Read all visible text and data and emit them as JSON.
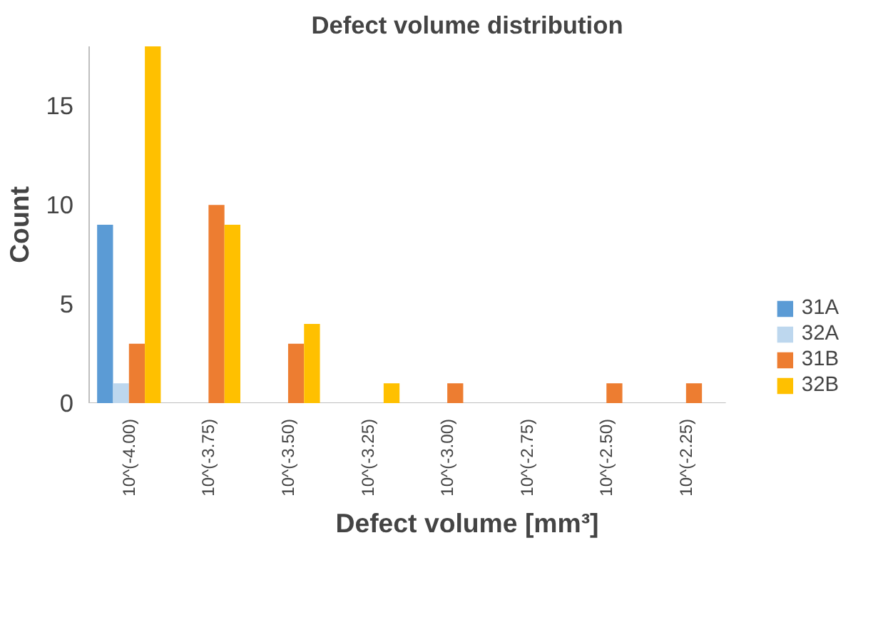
{
  "chart_data": {
    "type": "bar",
    "title": "Defect volume distribution",
    "xlabel": "Defect volume [mm³]",
    "ylabel": "Count",
    "categories": [
      "10^(-4.00)",
      "10^(-3.75)",
      "10^(-3.50)",
      "10^(-3.25)",
      "10^(-3.00)",
      "10^(-2.75)",
      "10^(-2.50)",
      "10^(-2.25)"
    ],
    "series": [
      {
        "name": "31A",
        "color": "#5b9bd5",
        "values": [
          9,
          0,
          0,
          0,
          0,
          0,
          0,
          0
        ]
      },
      {
        "name": "32A",
        "color": "#bdd7ee",
        "values": [
          1,
          0,
          0,
          0,
          0,
          0,
          0,
          0
        ]
      },
      {
        "name": "31B",
        "color": "#ed7d31",
        "values": [
          3,
          10,
          3,
          0,
          1,
          0,
          1,
          1
        ]
      },
      {
        "name": "32B",
        "color": "#ffc000",
        "values": [
          18,
          9,
          4,
          1,
          0,
          0,
          0,
          0
        ]
      }
    ],
    "ylim": [
      0,
      18
    ],
    "yticks": [
      0,
      5,
      10,
      15
    ],
    "grid": false,
    "legend": "bottom right"
  }
}
